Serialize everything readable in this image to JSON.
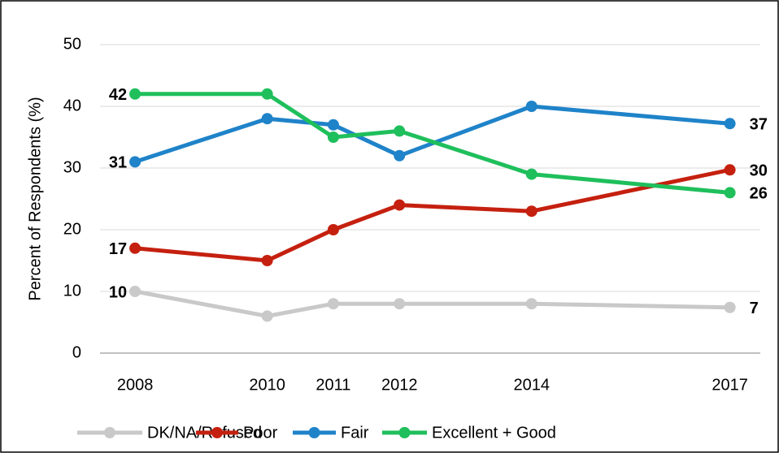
{
  "chart_data": {
    "type": "line",
    "y_label": "Percent of Respondents (%)",
    "x": [
      2008,
      2010,
      2011,
      2012,
      2014,
      2017
    ],
    "xlim": [
      2007.47,
      2017.46
    ],
    "xticks": [
      2008,
      2010,
      2011,
      2012,
      2014,
      2017
    ],
    "ylim": [
      0,
      50
    ],
    "yticks": [
      0,
      10,
      20,
      30,
      40,
      50
    ],
    "grid": true,
    "legend": "bottom",
    "series": [
      {
        "name": "DK/NA/Refused",
        "color": "#c9c9c9",
        "values": [
          10,
          6,
          8,
          8,
          8,
          7.4
        ],
        "value_labels": [
          "10",
          null,
          null,
          null,
          null,
          "7"
        ]
      },
      {
        "name": "Poor",
        "color": "#c5200f",
        "values": [
          17,
          15,
          20,
          24,
          23,
          29.7
        ],
        "value_labels": [
          "17",
          null,
          null,
          null,
          null,
          "30"
        ]
      },
      {
        "name": "Fair",
        "color": "#1f83c9",
        "values": [
          31,
          38,
          37,
          32,
          40,
          37.2
        ],
        "value_labels": [
          "31",
          null,
          null,
          null,
          null,
          "37"
        ]
      },
      {
        "name": "Excellent + Good",
        "color": "#1fbf5c",
        "values": [
          42,
          42,
          35,
          36,
          29,
          26
        ],
        "value_labels": [
          "42",
          null,
          null,
          null,
          null,
          "26"
        ]
      }
    ]
  }
}
